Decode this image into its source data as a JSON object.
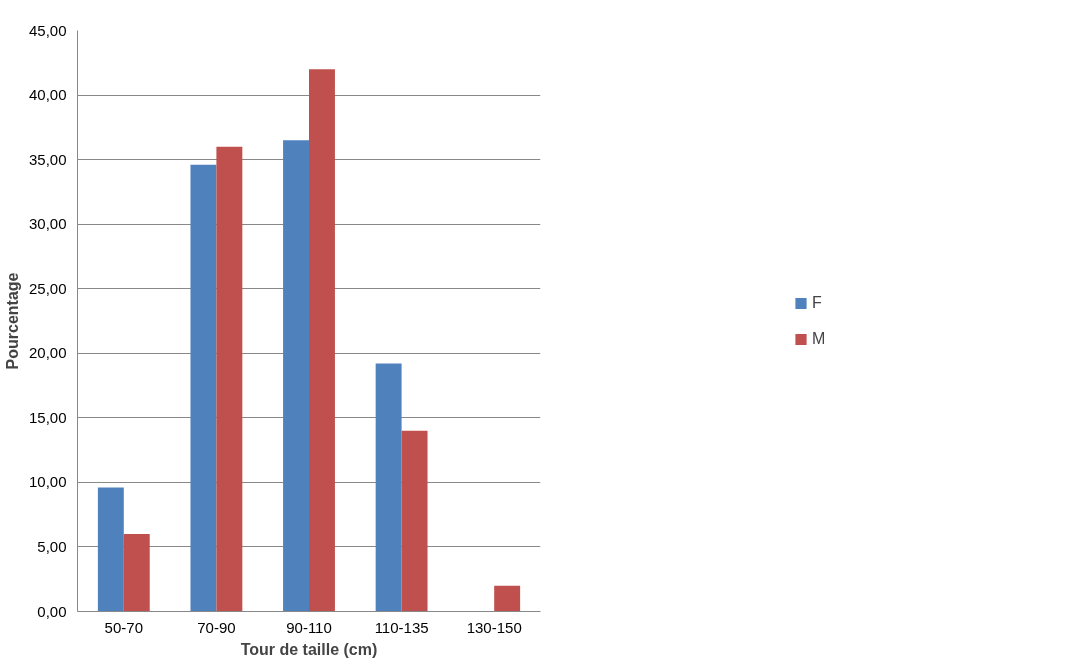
{
  "chart_data": {
    "type": "bar",
    "xlabel": "Tour de taille (cm)",
    "ylabel": "Pourcentage",
    "categories": [
      "50-70",
      "70-90",
      "90-110",
      "110-135",
      "130-150"
    ],
    "series": [
      {
        "name": "F",
        "color": "#4f81bd",
        "values": [
          9.6,
          34.6,
          36.5,
          19.2,
          0
        ]
      },
      {
        "name": "M",
        "color": "#c0504d",
        "values": [
          6,
          36,
          42,
          14,
          2
        ]
      }
    ],
    "ylim": [
      0,
      45
    ],
    "yticks": [
      {
        "value": 0,
        "label": "0,00"
      },
      {
        "value": 5,
        "label": "5,00"
      },
      {
        "value": 10,
        "label": "10,00"
      },
      {
        "value": 15,
        "label": "15,00"
      },
      {
        "value": 20,
        "label": "20,00"
      },
      {
        "value": 25,
        "label": "25,00"
      },
      {
        "value": 30,
        "label": "30,00"
      },
      {
        "value": 35,
        "label": "35,00"
      },
      {
        "value": 40,
        "label": "40,00"
      },
      {
        "value": 45,
        "label": "45,00"
      }
    ],
    "grid": "y",
    "legend": "right"
  }
}
